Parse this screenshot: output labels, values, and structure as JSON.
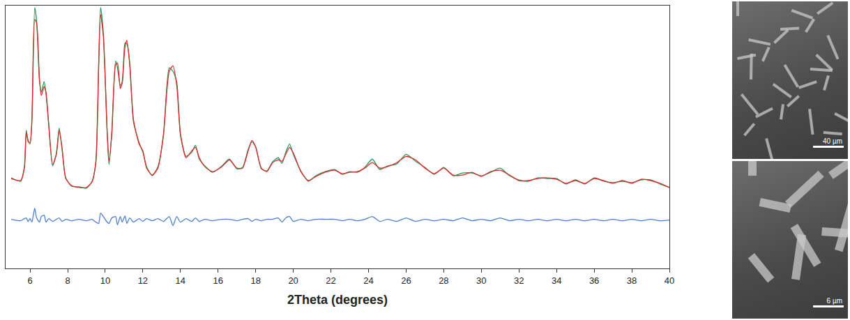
{
  "chart_data": {
    "type": "line",
    "x_label": "2Theta (degrees)",
    "x": [
      5.0,
      5.5,
      5.7,
      5.8,
      5.9,
      6.0,
      6.1,
      6.25,
      6.35,
      6.5,
      6.6,
      6.75,
      6.85,
      7.0,
      7.2,
      7.4,
      7.55,
      7.7,
      7.9,
      8.2,
      8.6,
      9.0,
      9.3,
      9.5,
      9.65,
      9.75,
      9.9,
      10.1,
      10.2,
      10.35,
      10.55,
      10.65,
      10.8,
      10.9,
      11.05,
      11.15,
      11.3,
      11.5,
      11.8,
      12.0,
      12.2,
      12.5,
      12.8,
      13.1,
      13.4,
      13.6,
      13.8,
      14.0,
      14.3,
      14.6,
      14.8,
      15.0,
      15.3,
      15.7,
      16.2,
      16.6,
      17.0,
      17.3,
      17.6,
      17.8,
      18.0,
      18.3,
      18.6,
      18.9,
      19.2,
      19.4,
      19.6,
      19.8,
      20.0,
      20.4,
      20.8,
      21.2,
      21.8,
      22.2,
      22.6,
      23.0,
      23.4,
      23.8,
      24.2,
      24.6,
      25.0,
      25.5,
      26.0,
      26.5,
      27.0,
      27.5,
      28.0,
      28.5,
      29.0,
      29.5,
      30.0,
      30.5,
      31.0,
      31.5,
      32.0,
      32.5,
      33.0,
      33.5,
      34.0,
      34.5,
      35.0,
      35.5,
      36.0,
      36.5,
      37.0,
      37.5,
      38.0,
      38.5,
      39.0,
      39.5,
      40.0
    ],
    "series": [
      {
        "color": "#1e9a57",
        "values": [
          131,
          126,
          147,
          200,
          183,
          182,
          212,
          377,
          358,
          272,
          255,
          270,
          252,
          207,
          148,
          166,
          203,
          173,
          131,
          119,
          118,
          116,
          126,
          152,
          290,
          377,
          340,
          197,
          150,
          198,
          300,
          290,
          265,
          267,
          326,
          325,
          298,
          212,
          182,
          168,
          147,
          134,
          147,
          193,
          290,
          285,
          270,
          192,
          162,
          168,
          178,
          158,
          148,
          139,
          148,
          158,
          144,
          146,
          172,
          183,
          176,
          144,
          141,
          154,
          160,
          152,
          168,
          180,
          165,
          141,
          126,
          134,
          141,
          143,
          136,
          140,
          139,
          146,
          158,
          143,
          148,
          151,
          165,
          155,
          146,
          136,
          146,
          134,
          138,
          138,
          134,
          139,
          145,
          134,
          128,
          126,
          131,
          130,
          130,
          122,
          128,
          122,
          131,
          126,
          124,
          126,
          124,
          128,
          128,
          122,
          117
        ]
      },
      {
        "color": "#e8262a",
        "values": [
          130,
          127,
          145,
          197,
          185,
          180,
          215,
          360,
          355,
          275,
          250,
          263,
          255,
          205,
          150,
          165,
          200,
          175,
          130,
          120,
          117,
          117,
          125,
          155,
          295,
          367,
          335,
          200,
          155,
          195,
          295,
          297,
          260,
          270,
          320,
          330,
          295,
          215,
          180,
          170,
          145,
          135,
          145,
          195,
          285,
          293,
          265,
          195,
          160,
          170,
          175,
          160,
          147,
          140,
          147,
          157,
          145,
          145,
          170,
          185,
          175,
          145,
          140,
          153,
          157,
          155,
          165,
          175,
          167,
          140,
          127,
          133,
          140,
          142,
          137,
          139,
          140,
          145,
          153,
          145,
          147,
          153,
          162,
          157,
          145,
          137,
          145,
          135,
          135,
          139,
          133,
          140,
          142,
          135,
          127,
          127,
          130,
          131,
          129,
          123,
          127,
          123,
          130,
          127,
          123,
          127,
          123,
          129,
          127,
          123,
          117
        ]
      },
      {
        "color": "#4a7fd0",
        "values": [
          71,
          69,
          72,
          73,
          68,
          72,
          67,
          87,
          73,
          67,
          75,
          77,
          67,
          72,
          68,
          71,
          73,
          68,
          71,
          69,
          71,
          69,
          71,
          67,
          65,
          80,
          75,
          67,
          65,
          73,
          75,
          63,
          75,
          67,
          76,
          65,
          73,
          67,
          72,
          68,
          72,
          69,
          72,
          68,
          75,
          62,
          75,
          67,
          72,
          68,
          73,
          68,
          71,
          69,
          71,
          71,
          69,
          71,
          72,
          68,
          71,
          69,
          71,
          71,
          73,
          67,
          73,
          75,
          68,
          71,
          69,
          71,
          71,
          71,
          69,
          71,
          69,
          71,
          75,
          68,
          71,
          68,
          73,
          68,
          71,
          69,
          71,
          69,
          73,
          69,
          71,
          69,
          73,
          69,
          71,
          69,
          71,
          69,
          71,
          69,
          71,
          69,
          71,
          69,
          71,
          69,
          71,
          69,
          71,
          69,
          70
        ]
      }
    ],
    "xlim": [
      4.7,
      40
    ],
    "xticks": [
      6,
      8,
      10,
      12,
      14,
      16,
      18,
      20,
      22,
      24,
      26,
      28,
      30,
      32,
      34,
      36,
      38,
      40
    ],
    "ylim": [
      0,
      380
    ],
    "grid": false,
    "tick_labels": "x"
  },
  "images": [
    {
      "scale_bar": "40 µm"
    },
    {
      "scale_bar": "6 µm"
    }
  ]
}
